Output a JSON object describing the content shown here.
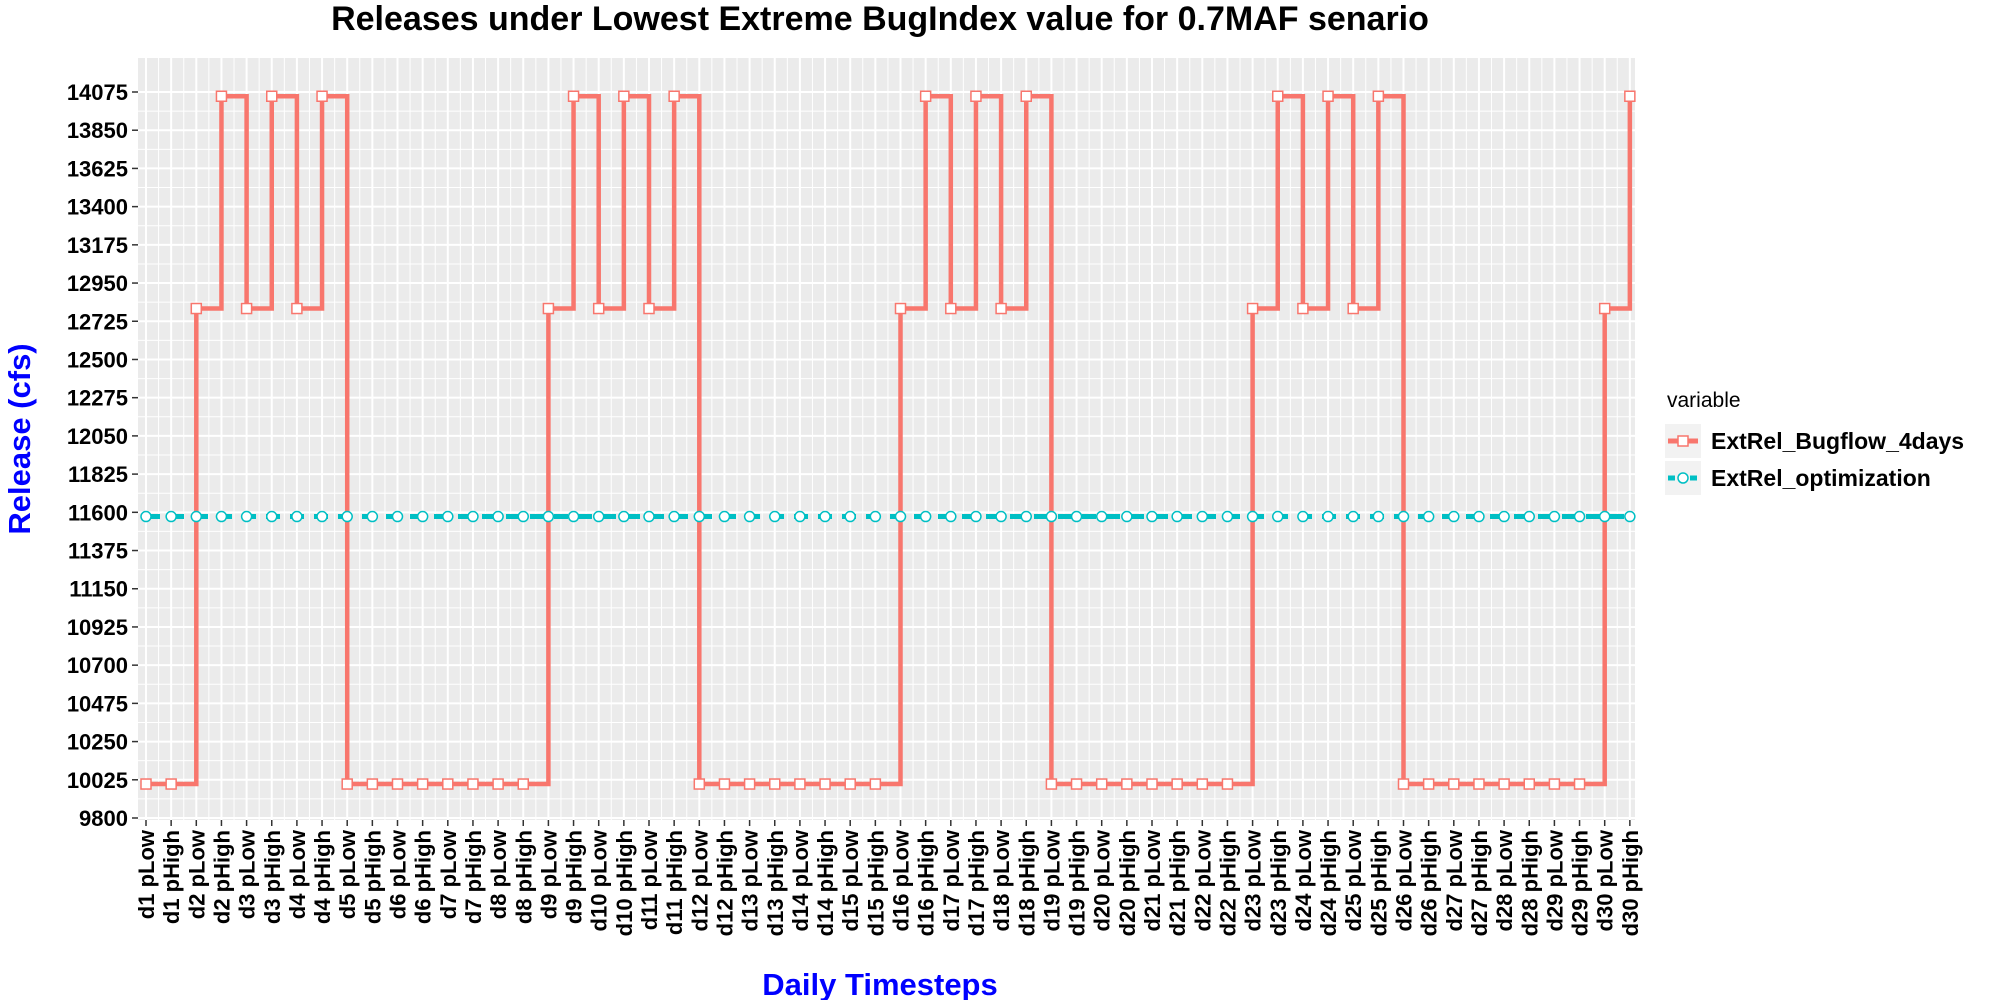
{
  "chart_data": {
    "type": "line",
    "title": "Releases under Lowest Extreme BugIndex value for 0.7MAF senario",
    "xlabel": "Daily Timesteps",
    "ylabel": "Release (cfs)",
    "ylim": [
      9800,
      14075
    ],
    "yticks": [
      9800,
      10025,
      10250,
      10475,
      10700,
      10925,
      11150,
      11375,
      11600,
      11825,
      12050,
      12275,
      12500,
      12725,
      12950,
      13175,
      13400,
      13625,
      13850,
      14075
    ],
    "categories": [
      "d1 pLow",
      "d1 pHigh",
      "d2 pLow",
      "d2 pHigh",
      "d3 pLow",
      "d3 pHigh",
      "d4 pLow",
      "d4 pHigh",
      "d5 pLow",
      "d5 pHigh",
      "d6 pLow",
      "d6 pHigh",
      "d7 pLow",
      "d7 pHigh",
      "d8 pLow",
      "d8 pHigh",
      "d9 pLow",
      "d9 pHigh",
      "d10 pLow",
      "d10 pHigh",
      "d11 pLow",
      "d11 pHigh",
      "d12 pLow",
      "d12 pHigh",
      "d13 pLow",
      "d13 pHigh",
      "d14 pLow",
      "d14 pHigh",
      "d15 pLow",
      "d15 pHigh",
      "d16 pLow",
      "d16 pHigh",
      "d17 pLow",
      "d17 pHigh",
      "d18 pLow",
      "d18 pHigh",
      "d19 pLow",
      "d19 pHigh",
      "d20 pLow",
      "d20 pHigh",
      "d21 pLow",
      "d21 pHigh",
      "d22 pLow",
      "d22 pHigh",
      "d23 pLow",
      "d23 pHigh",
      "d24 pLow",
      "d24 pHigh",
      "d25 pLow",
      "d25 pHigh",
      "d26 pLow",
      "d26 pHigh",
      "d27 pLow",
      "d27 pHigh",
      "d28 pLow",
      "d28 pHigh",
      "d29 pLow",
      "d29 pHigh",
      "d30 pLow",
      "d30 pHigh"
    ],
    "series": [
      {
        "name": "ExtRel_Bugflow_4days",
        "color": "#f8766d",
        "line": "step",
        "marker": "square-open",
        "values": [
          10000,
          10000,
          12800,
          14050,
          12800,
          14050,
          12800,
          14050,
          10000,
          10000,
          10000,
          10000,
          10000,
          10000,
          10000,
          10000,
          12800,
          14050,
          12800,
          14050,
          12800,
          14050,
          10000,
          10000,
          10000,
          10000,
          10000,
          10000,
          10000,
          10000,
          12800,
          14050,
          12800,
          14050,
          12800,
          14050,
          10000,
          10000,
          10000,
          10000,
          10000,
          10000,
          10000,
          10000,
          12800,
          14050,
          12800,
          14050,
          12800,
          14050,
          10000,
          10000,
          10000,
          10000,
          10000,
          10000,
          10000,
          10000,
          12800,
          14050
        ]
      },
      {
        "name": "ExtRel_optimization",
        "color": "#00bfc4",
        "line": "dashed",
        "marker": "circle-open",
        "values": [
          11575,
          11575,
          11575,
          11575,
          11575,
          11575,
          11575,
          11575,
          11575,
          11575,
          11575,
          11575,
          11575,
          11575,
          11575,
          11575,
          11575,
          11575,
          11575,
          11575,
          11575,
          11575,
          11575,
          11575,
          11575,
          11575,
          11575,
          11575,
          11575,
          11575,
          11575,
          11575,
          11575,
          11575,
          11575,
          11575,
          11575,
          11575,
          11575,
          11575,
          11575,
          11575,
          11575,
          11575,
          11575,
          11575,
          11575,
          11575,
          11575,
          11575,
          11575,
          11575,
          11575,
          11575,
          11575,
          11575,
          11575,
          11575,
          11575,
          11575
        ]
      }
    ],
    "grid": true,
    "legend": {
      "title": "variable",
      "placement": "right"
    },
    "panel_background": "#ebebeb",
    "grid_color": "#ffffff"
  }
}
